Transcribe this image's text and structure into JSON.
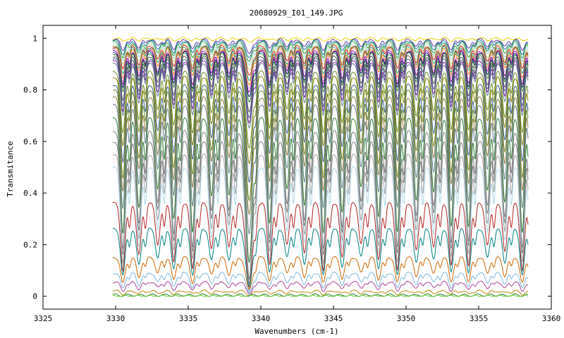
{
  "chart_data": {
    "type": "line",
    "title": "20080929_I01_149.JPG",
    "xlabel": "Wavenumbers (cm-1)",
    "ylabel": "Transmitance",
    "xlim": [
      3325,
      3360
    ],
    "ylim": [
      -0.05,
      1.05
    ],
    "x_ticks": [
      3325,
      3330,
      3335,
      3340,
      3345,
      3350,
      3355,
      3360
    ],
    "y_ticks": [
      0,
      0.2,
      0.4,
      0.6,
      0.8,
      1
    ],
    "y_tick_labels": [
      "0",
      "0.2",
      "0.4",
      "0.6",
      "0.8",
      "1"
    ],
    "grid": false,
    "legend": "none",
    "x_range_of_data": [
      3329.8,
      3358.4
    ],
    "absorption_lines": [
      3330.5,
      3331.6,
      3332.9,
      3334.0,
      3335.3,
      3336.6,
      3337.8,
      3339.2,
      3340.6,
      3341.8,
      3343.0,
      3344.3,
      3345.6,
      3346.9,
      3348.1,
      3349.4,
      3350.7,
      3351.9,
      3353.1,
      3354.3,
      3355.6,
      3356.8,
      3358.0
    ],
    "series": [
      {
        "color": "#e8d000",
        "baseline": 1.0,
        "depth": 0.01
      },
      {
        "color": "#6a3d9a",
        "baseline": 0.995,
        "depth": 0.04
      },
      {
        "color": "#1f78b4",
        "baseline": 0.99,
        "depth": 0.05
      },
      {
        "color": "#33a02c",
        "baseline": 0.985,
        "depth": 0.06
      },
      {
        "color": "#a6cee3",
        "baseline": 0.98,
        "depth": 0.07
      },
      {
        "color": "#b2df8a",
        "baseline": 0.975,
        "depth": 0.08
      },
      {
        "color": "#e31a1c",
        "baseline": 0.97,
        "depth": 0.09
      },
      {
        "color": "#17a589",
        "baseline": 0.965,
        "depth": 0.1
      },
      {
        "color": "#ff7f00",
        "baseline": 0.96,
        "depth": 0.11
      },
      {
        "color": "#cab2d6",
        "baseline": 0.955,
        "depth": 0.12
      },
      {
        "color": "#990099",
        "baseline": 0.95,
        "depth": 0.13
      },
      {
        "color": "#1a237e",
        "baseline": 0.945,
        "depth": 0.14
      },
      {
        "color": "#2e7d32",
        "baseline": 0.94,
        "depth": 0.15
      },
      {
        "color": "#555555",
        "baseline": 0.93,
        "depth": 0.17
      },
      {
        "color": "#4e6b8a",
        "baseline": 0.92,
        "depth": 0.18
      },
      {
        "color": "#7b1fa2",
        "baseline": 0.91,
        "depth": 0.19
      },
      {
        "color": "#607d8b",
        "baseline": 0.9,
        "depth": 0.2
      },
      {
        "color": "#6b8e23",
        "baseline": 0.87,
        "depth": 0.24
      },
      {
        "color": "#808000",
        "baseline": 0.85,
        "depth": 0.27
      },
      {
        "color": "#3a5f8f",
        "baseline": 0.82,
        "depth": 0.3
      },
      {
        "color": "#6b8e23",
        "baseline": 0.8,
        "depth": 0.34
      },
      {
        "color": "#8a7a3a",
        "baseline": 0.77,
        "depth": 0.36
      },
      {
        "color": "#607d8b",
        "baseline": 0.74,
        "depth": 0.4
      },
      {
        "color": "#2e7d32",
        "baseline": 0.69,
        "depth": 0.45
      },
      {
        "color": "#808080",
        "baseline": 0.64,
        "depth": 0.46
      },
      {
        "color": "#808080",
        "baseline": 0.6,
        "depth": 0.44
      },
      {
        "color": "#a0a0a0",
        "baseline": 0.55,
        "depth": 0.42
      },
      {
        "color": "#add8e6",
        "baseline": 0.5,
        "depth": 0.4
      },
      {
        "color": "#b22222",
        "baseline": 0.36,
        "depth": 0.26
      },
      {
        "color": "#008080",
        "baseline": 0.26,
        "depth": 0.18
      },
      {
        "color": "#cc6600",
        "baseline": 0.15,
        "depth": 0.1
      },
      {
        "color": "#7ab7d9",
        "baseline": 0.09,
        "depth": 0.06
      },
      {
        "color": "#aa4499",
        "baseline": 0.055,
        "depth": 0.035
      },
      {
        "color": "#b8860b",
        "baseline": 0.02,
        "depth": 0.012
      },
      {
        "color": "#2e7d32",
        "baseline": 0.005,
        "depth": 0.003
      },
      {
        "color": "#66cc33",
        "baseline": 0.0,
        "depth": 0.0
      }
    ]
  }
}
